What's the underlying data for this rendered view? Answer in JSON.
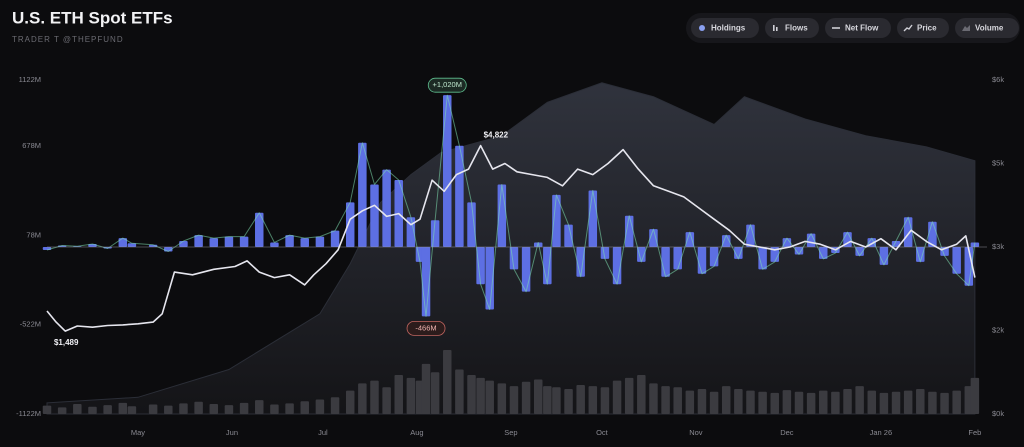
{
  "chart_data": {
    "type": "combo",
    "title": "U.S. ETH Spot ETFs",
    "subtitle": "TRADER T @THEPFUND",
    "xlim": [
      0,
      310
    ],
    "xticks": [
      {
        "value": 30,
        "label": "May"
      },
      {
        "value": 61,
        "label": "Jun"
      },
      {
        "value": 91,
        "label": "Jul"
      },
      {
        "value": 122,
        "label": "Aug"
      },
      {
        "value": 153,
        "label": "Sep"
      },
      {
        "value": 183,
        "label": "Oct"
      },
      {
        "value": 214,
        "label": "Nov"
      },
      {
        "value": 244,
        "label": "Dec"
      },
      {
        "value": 275,
        "label": "Jan 26"
      },
      {
        "value": 306,
        "label": "Feb"
      }
    ],
    "ylim": [
      -1122,
      1122
    ],
    "yticks": [
      {
        "value": 1122,
        "label": "1122M"
      },
      {
        "value": 678,
        "label": "678M"
      },
      {
        "value": 78,
        "label": "78M"
      },
      {
        "value": -522,
        "label": "-522M"
      },
      {
        "value": -1122,
        "label": "-1122M"
      }
    ],
    "y2lim": [
      0,
      6000
    ],
    "y2ticks": [
      {
        "value": 6000,
        "label": "$6k"
      },
      {
        "value": 4500,
        "label": "$5k"
      },
      {
        "value": 3000,
        "label": "$3k"
      },
      {
        "value": 1500,
        "label": "$2k"
      },
      {
        "value": 0,
        "label": "$0k"
      }
    ],
    "grid": false,
    "series": [
      {
        "name": "Holdings",
        "kind": "area",
        "axis": "y2",
        "color": "#2b2e37",
        "x": [
          0,
          30,
          60,
          90,
          100,
          110,
          120,
          130,
          150,
          165,
          183,
          200,
          220,
          230,
          250,
          270,
          290,
          306
        ],
        "values": [
          200,
          300,
          800,
          1800,
          2700,
          3800,
          4300,
          4700,
          5000,
          5600,
          5950,
          5700,
          5200,
          5700,
          5300,
          5000,
          4800,
          4550
        ]
      },
      {
        "name": "Flows",
        "kind": "bar",
        "color": "#5d6fe3",
        "x": [
          0,
          5,
          10,
          15,
          20,
          25,
          28,
          35,
          40,
          45,
          50,
          55,
          60,
          65,
          70,
          75,
          80,
          85,
          90,
          95,
          100,
          104,
          108,
          112,
          116,
          120,
          123,
          125,
          128,
          132,
          136,
          140,
          143,
          146,
          150,
          154,
          158,
          162,
          165,
          168,
          172,
          176,
          180,
          184,
          188,
          192,
          196,
          200,
          204,
          208,
          212,
          216,
          220,
          224,
          228,
          232,
          236,
          240,
          244,
          248,
          252,
          256,
          260,
          264,
          268,
          272,
          276,
          280,
          284,
          288,
          292,
          296,
          300,
          304,
          306
        ],
        "values": [
          -20,
          10,
          5,
          20,
          -10,
          60,
          25,
          15,
          -30,
          40,
          80,
          60,
          70,
          70,
          230,
          30,
          80,
          60,
          70,
          110,
          300,
          700,
          420,
          520,
          450,
          200,
          -100,
          -466,
          180,
          1020,
          680,
          300,
          -250,
          -420,
          420,
          -150,
          -300,
          30,
          -250,
          350,
          150,
          -200,
          380,
          -80,
          -250,
          210,
          -100,
          120,
          -200,
          -150,
          100,
          -180,
          -130,
          80,
          -80,
          150,
          -150,
          -100,
          60,
          -50,
          90,
          -80,
          -40,
          100,
          -60,
          60,
          -120,
          40,
          200,
          -100,
          170,
          -60,
          -180,
          -260,
          30
        ],
        "value_labels": [
          null,
          null,
          null,
          null,
          null,
          null,
          null,
          null,
          null,
          null,
          null,
          null,
          null,
          null,
          null,
          null,
          null,
          null,
          null,
          null,
          null,
          null,
          null,
          null,
          null,
          null,
          null,
          "-466M",
          null,
          "+1,020M",
          null,
          null,
          null,
          null,
          null,
          null,
          null,
          null,
          null,
          null,
          null,
          null,
          null,
          null,
          null,
          null,
          null,
          null,
          null,
          null,
          null,
          null,
          null,
          null,
          null,
          null,
          null,
          null,
          null,
          null,
          null,
          null,
          null,
          null,
          null,
          null,
          null,
          null,
          null,
          null,
          null,
          null,
          null,
          null,
          null
        ]
      },
      {
        "name": "Net Flow",
        "kind": "line",
        "color": "#7fe0b0",
        "x": [
          0,
          5,
          10,
          15,
          20,
          25,
          28,
          35,
          40,
          45,
          50,
          55,
          60,
          65,
          70,
          75,
          80,
          85,
          90,
          95,
          100,
          104,
          108,
          112,
          116,
          120,
          123,
          125,
          128,
          132,
          136,
          140,
          143,
          146,
          150,
          154,
          158,
          162,
          165,
          168,
          172,
          176,
          180,
          184,
          188,
          192,
          196,
          200,
          204,
          208,
          212,
          216,
          220,
          224,
          228,
          232,
          236,
          240,
          244,
          248,
          252,
          256,
          260,
          264,
          268,
          272,
          276,
          280,
          284,
          288,
          292,
          296,
          300,
          304,
          306
        ],
        "values": [
          -20,
          10,
          5,
          20,
          -10,
          60,
          25,
          15,
          -30,
          40,
          80,
          60,
          70,
          70,
          230,
          30,
          80,
          60,
          70,
          110,
          300,
          700,
          420,
          520,
          450,
          200,
          -100,
          -466,
          180,
          1020,
          680,
          300,
          -250,
          -420,
          420,
          -150,
          -300,
          30,
          -250,
          350,
          150,
          -200,
          380,
          -80,
          -250,
          210,
          -100,
          120,
          -200,
          -150,
          100,
          -180,
          -130,
          80,
          -80,
          150,
          -150,
          -100,
          60,
          -50,
          90,
          -80,
          -40,
          100,
          -60,
          60,
          -120,
          40,
          200,
          -100,
          170,
          -60,
          -180,
          -260,
          30
        ]
      },
      {
        "name": "Price",
        "kind": "line",
        "axis": "y2",
        "color": "#e6e6ee",
        "x": [
          0,
          3,
          6,
          10,
          15,
          20,
          25,
          30,
          35,
          38,
          42,
          48,
          55,
          62,
          66,
          70,
          75,
          80,
          85,
          88,
          92,
          96,
          100,
          104,
          108,
          112,
          116,
          120,
          123,
          127,
          131,
          135,
          139,
          143,
          147,
          151,
          155,
          160,
          165,
          170,
          175,
          180,
          185,
          190,
          195,
          200,
          205,
          210,
          215,
          220,
          225,
          230,
          235,
          240,
          245,
          250,
          255,
          260,
          265,
          270,
          275,
          280,
          285,
          290,
          295,
          300,
          303,
          306
        ],
        "values": [
          1850,
          1650,
          1489,
          1580,
          1560,
          1590,
          1600,
          1620,
          1650,
          1800,
          2550,
          2500,
          2600,
          2650,
          2750,
          2550,
          2450,
          2500,
          2320,
          2500,
          2700,
          2950,
          3500,
          3650,
          3750,
          3550,
          3600,
          3400,
          3500,
          4200,
          4000,
          4300,
          4400,
          4822,
          4400,
          4500,
          4350,
          4300,
          4250,
          4100,
          4400,
          4300,
          4500,
          4750,
          4400,
          4100,
          4000,
          3900,
          3700,
          3500,
          3300,
          3050,
          3000,
          2950,
          3000,
          3100,
          3050,
          2950,
          3100,
          3000,
          3150,
          2950,
          3300,
          3100,
          2950,
          3050,
          3200,
          2450
        ],
        "value_labels": [
          null,
          null,
          "$1,489",
          null,
          null,
          null,
          null,
          null,
          null,
          null,
          null,
          null,
          null,
          null,
          null,
          null,
          null,
          null,
          null,
          null,
          null,
          null,
          null,
          null,
          null,
          null,
          null,
          null,
          null,
          null,
          null,
          null,
          null,
          "$4,822",
          null,
          null,
          null,
          null,
          null,
          null,
          null,
          null,
          null,
          null,
          null,
          null,
          null,
          null,
          null,
          null,
          null,
          null,
          null,
          null,
          null,
          null,
          null,
          null,
          null,
          null,
          null,
          null,
          null,
          null,
          null,
          null,
          null,
          null
        ]
      },
      {
        "name": "Volume",
        "kind": "bar",
        "axis": "y2",
        "color": "#3b3b40",
        "x": [
          0,
          5,
          10,
          15,
          20,
          25,
          28,
          35,
          40,
          45,
          50,
          55,
          60,
          65,
          70,
          75,
          80,
          85,
          90,
          95,
          100,
          104,
          108,
          112,
          116,
          120,
          123,
          125,
          128,
          132,
          136,
          140,
          143,
          146,
          150,
          154,
          158,
          162,
          165,
          168,
          172,
          176,
          180,
          184,
          188,
          192,
          196,
          200,
          204,
          208,
          212,
          216,
          220,
          224,
          228,
          232,
          236,
          240,
          244,
          248,
          252,
          256,
          260,
          264,
          268,
          272,
          276,
          280,
          284,
          288,
          292,
          296,
          300,
          304,
          306
        ],
        "values": [
          150,
          120,
          180,
          130,
          160,
          200,
          140,
          170,
          150,
          190,
          220,
          180,
          160,
          200,
          250,
          170,
          190,
          230,
          260,
          300,
          420,
          550,
          600,
          480,
          700,
          650,
          600,
          900,
          750,
          1150,
          800,
          700,
          650,
          600,
          550,
          500,
          580,
          620,
          500,
          480,
          450,
          520,
          500,
          480,
          600,
          650,
          700,
          550,
          500,
          480,
          420,
          450,
          400,
          500,
          450,
          420,
          400,
          380,
          430,
          400,
          380,
          420,
          400,
          450,
          500,
          420,
          380,
          400,
          420,
          450,
          400,
          380,
          420,
          500,
          650
        ]
      }
    ]
  }
}
